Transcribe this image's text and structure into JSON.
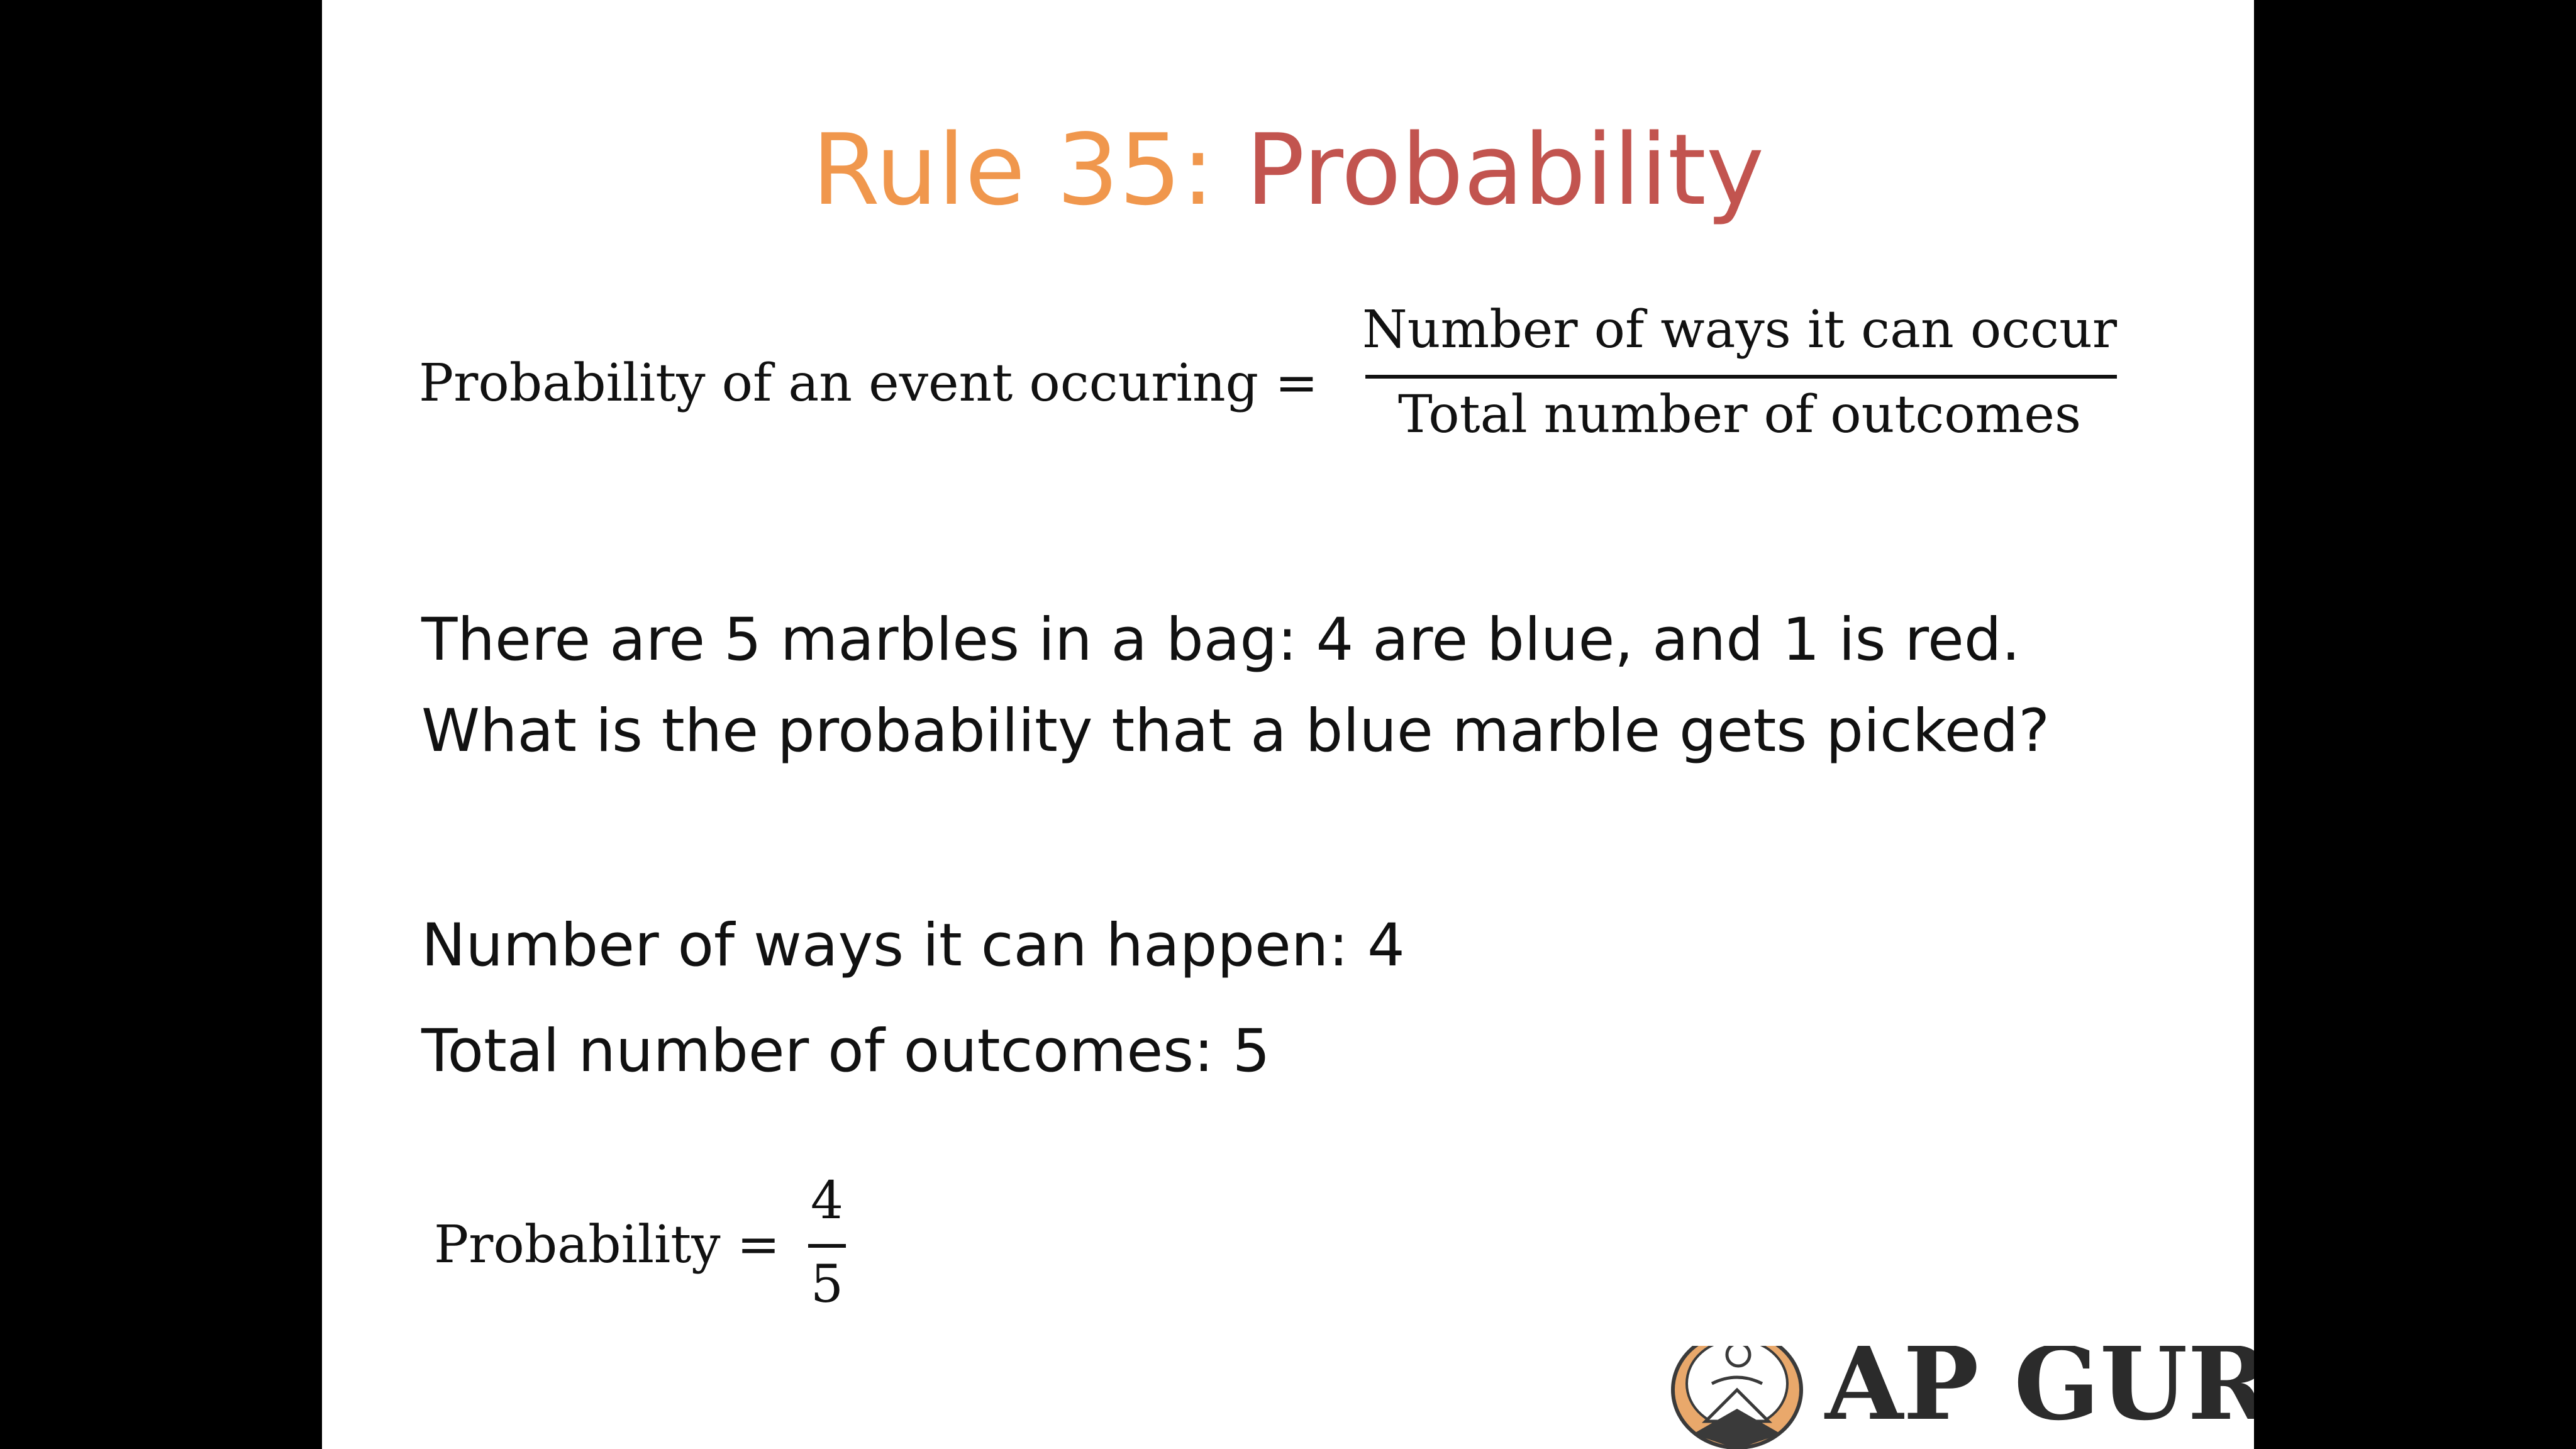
{
  "slide": {
    "title_part1": "Rule 35: ",
    "title_part2": "Probability",
    "formula1": {
      "lhs": "Probability of an event occuring =",
      "numerator": "Number of ways it can occur",
      "denominator": "Total number of outcomes"
    },
    "question": {
      "line1": "There are 5 marbles in a bag: 4 are blue, and 1 is red.",
      "line2": "What is the probability that a blue marble gets picked?"
    },
    "work": {
      "line1": "Number of ways it can happen: 4",
      "line2": "Total number of outcomes: 5"
    },
    "formula2": {
      "lhs": "Probability =",
      "numerator": "4",
      "denominator": "5"
    },
    "logo_text": "AP GURU"
  },
  "colors": {
    "title_orange": "#F0974D",
    "title_red": "#C2544F",
    "background": "#000000",
    "slide_background": "#FFFFFF"
  }
}
